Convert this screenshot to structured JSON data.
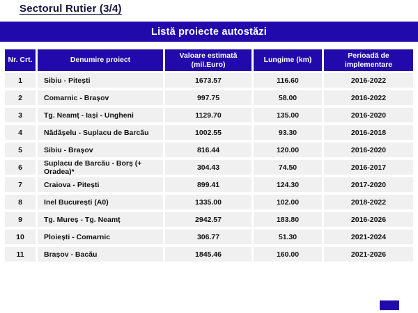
{
  "page": {
    "title": "Sectorul Rutier (3/4)",
    "banner": "Listă proiecte autostăzi"
  },
  "colors": {
    "accent_blue": "#2109AC",
    "row_gray": "#F0F0F0",
    "title_navy": "#14143F",
    "header_text": "#FFFFFF",
    "body_text": "#111111"
  },
  "table": {
    "headers": [
      "Nr. Crt.",
      "Denumire proiect",
      "Valoare estimată (mil.Euro)",
      "Lungime (km)",
      "Perioadă de implementare"
    ],
    "rows": [
      {
        "nr": "1",
        "name": "Sibiu - Pitești",
        "value": "1673.57",
        "length": "116.60",
        "period": "2016-2022"
      },
      {
        "nr": "2",
        "name": "Comarnic - Brașov",
        "value": "997.75",
        "length": "58.00",
        "period": "2016-2022"
      },
      {
        "nr": "3",
        "name": "Tg. Neamț - Iași - Ungheni",
        "value": "1129.70",
        "length": "135.00",
        "period": "2016-2020"
      },
      {
        "nr": "4",
        "name": "Nădășelu - Suplacu de Barcău",
        "value": "1002.55",
        "length": "93.30",
        "period": "2016-2018"
      },
      {
        "nr": "5",
        "name": "Sibiu - Brașov",
        "value": "816.44",
        "length": "120.00",
        "period": "2016-2020"
      },
      {
        "nr": "6",
        "name": "Suplacu de Barcău - Borș (+ Oradea)*",
        "value": "304.43",
        "length": "74.50",
        "period": "2016-2017"
      },
      {
        "nr": "7",
        "name": "Craiova - Pitești",
        "value": "899.41",
        "length": "124.30",
        "period": "2017-2020"
      },
      {
        "nr": "8",
        "name": "Inel București (A0)",
        "value": "1335.00",
        "length": "102.00",
        "period": "2018-2022"
      },
      {
        "nr": "9",
        "name": "Tg. Mureș - Tg. Neamț",
        "value": "2942.57",
        "length": "183.80",
        "period": "2016-2026"
      },
      {
        "nr": "10",
        "name": "Ploiești - Comarnic",
        "value": "306.77",
        "length": "51.30",
        "period": "2021-2024"
      },
      {
        "nr": "11",
        "name": "Brașov - Bacău",
        "value": "1845.46",
        "length": "160.00",
        "period": "2021-2026"
      }
    ]
  }
}
